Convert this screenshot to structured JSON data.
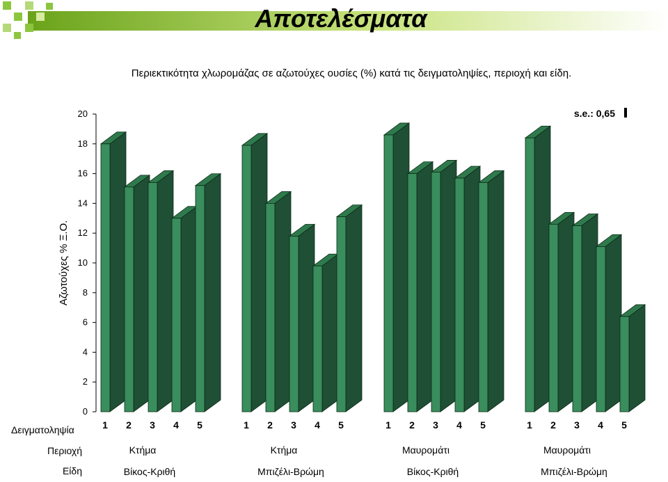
{
  "slide_title": "Αποτελέσματα",
  "colors": {
    "bar_front": "#3a8d5c",
    "bar_side": "#1f4f35",
    "bar_top": "#2f7a4c",
    "banner_dark": "#7ab317",
    "banner_light": "#d7eba0"
  },
  "chart_data": {
    "type": "bar",
    "title": "Περιεκτικότητα χλωρομάζας σε αζωτούχες ουσίες (%) κατά τις δειγματοληψίες, περιοχή και είδη.",
    "ylabel": "Αζωτούχες % Ξ.Ο.",
    "ylim": [
      0,
      20
    ],
    "yticks": [
      0,
      2,
      4,
      6,
      8,
      10,
      12,
      14,
      16,
      18,
      20
    ],
    "se_label": "s.e.: 0,65",
    "se_value": 0.65,
    "row_labels": {
      "sampling": "Δειγματοληψία",
      "region": "Περιοχή",
      "species": "Είδη"
    },
    "categories": [
      "1",
      "2",
      "3",
      "4",
      "5"
    ],
    "groups": [
      {
        "region": "Κτήμα",
        "species": "Βίκος-Κριθή",
        "values": [
          18.0,
          15.1,
          15.4,
          13.0,
          15.2
        ]
      },
      {
        "region": "Κτήμα",
        "species": "Μπιζέλι-Βρώμη",
        "values": [
          17.9,
          14.0,
          11.8,
          9.8,
          13.1
        ]
      },
      {
        "region": "Μαυρομάτι",
        "species": "Βίκος-Κριθή",
        "values": [
          18.6,
          16.0,
          16.1,
          15.7,
          15.4
        ]
      },
      {
        "region": "Μαυρομάτι",
        "species": "Μπιζέλι-Βρώμη",
        "values": [
          18.4,
          12.6,
          12.5,
          11.1,
          6.4
        ]
      }
    ]
  }
}
